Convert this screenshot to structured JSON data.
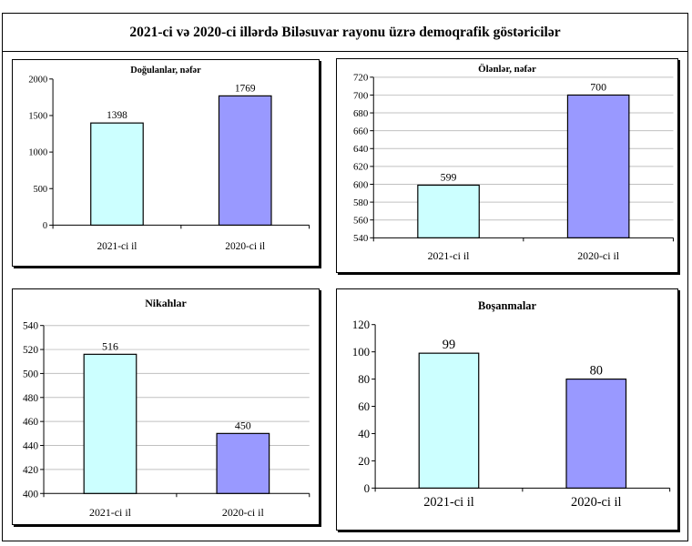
{
  "title": "2021-ci və 2020-ci illərdə Biləsuvar rayonu üzrə demoqrafik göstəricilər",
  "colors": {
    "series_2021": "#ccffff",
    "series_2020": "#9999ff",
    "gridline": "#c0c0c0"
  },
  "chart_data": [
    {
      "type": "bar",
      "title": "Doğulanlar,  nəfər",
      "categories": [
        "2021-ci il",
        "2020-ci il"
      ],
      "values": [
        1398,
        1769
      ],
      "ylim": [
        0,
        2000
      ],
      "yticks": [
        0,
        500,
        1000,
        1500,
        2000
      ],
      "grid": false
    },
    {
      "type": "bar",
      "title": "Ölənlər,  nəfər",
      "categories": [
        "2021-ci il",
        "2020-ci il"
      ],
      "values": [
        599,
        700
      ],
      "ylim": [
        540,
        720
      ],
      "yticks": [
        540,
        560,
        580,
        600,
        620,
        640,
        660,
        680,
        700,
        720
      ],
      "grid": true
    },
    {
      "type": "bar",
      "title": "Nikahlar",
      "categories": [
        "2021-ci il",
        "2020-ci il"
      ],
      "values": [
        516,
        450
      ],
      "ylim": [
        400,
        540
      ],
      "yticks": [
        400,
        420,
        440,
        460,
        480,
        500,
        520,
        540
      ],
      "grid": true
    },
    {
      "type": "bar",
      "title": "Boşanmalar",
      "categories": [
        "2021-ci il",
        "2020-ci il"
      ],
      "values": [
        99,
        80
      ],
      "ylim": [
        0,
        120
      ],
      "yticks": [
        0,
        20,
        40,
        60,
        80,
        100,
        120
      ],
      "grid": false
    }
  ]
}
